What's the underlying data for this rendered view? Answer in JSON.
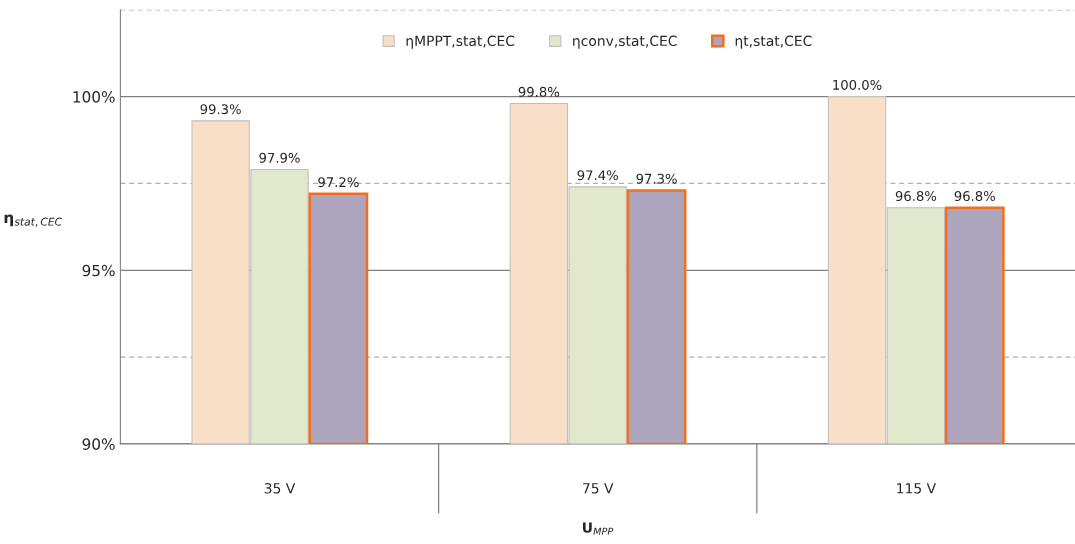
{
  "chart_data": {
    "type": "bar",
    "xlabel": "U$_{MPP}$",
    "ylabel": "η$_{stat,CEC}$",
    "categories": [
      "35 V",
      "75 V",
      "115 V"
    ],
    "series": [
      {
        "name": "ηMPPT,stat,CEC",
        "color": "#fadfc8",
        "values": [
          99.3,
          99.8,
          100.0
        ],
        "value_labels": [
          "99.3%",
          "99.8%",
          "100.0%"
        ]
      },
      {
        "name": "ηconv,stat,CEC",
        "color": "#e1e8cc",
        "values": [
          97.9,
          97.4,
          96.8
        ],
        "value_labels": [
          "97.9%",
          "97.4%",
          "96.8%"
        ]
      },
      {
        "name": "ηt,stat,CEC",
        "color": "#ada4bd",
        "values": [
          97.2,
          97.3,
          96.8
        ],
        "value_labels": [
          "97.2%",
          "97.3%",
          "96.8%"
        ]
      }
    ],
    "ylim": [
      90,
      102.5
    ],
    "yticks": [
      {
        "value": 90,
        "label": "90%"
      },
      {
        "value": 92.5,
        "label": null
      },
      {
        "value": 95,
        "label": "95%"
      },
      {
        "value": 97.5,
        "label": null
      },
      {
        "value": 100,
        "label": "100%"
      },
      {
        "value": 102.5,
        "label": null
      }
    ],
    "grid": "y",
    "legend": "top"
  }
}
